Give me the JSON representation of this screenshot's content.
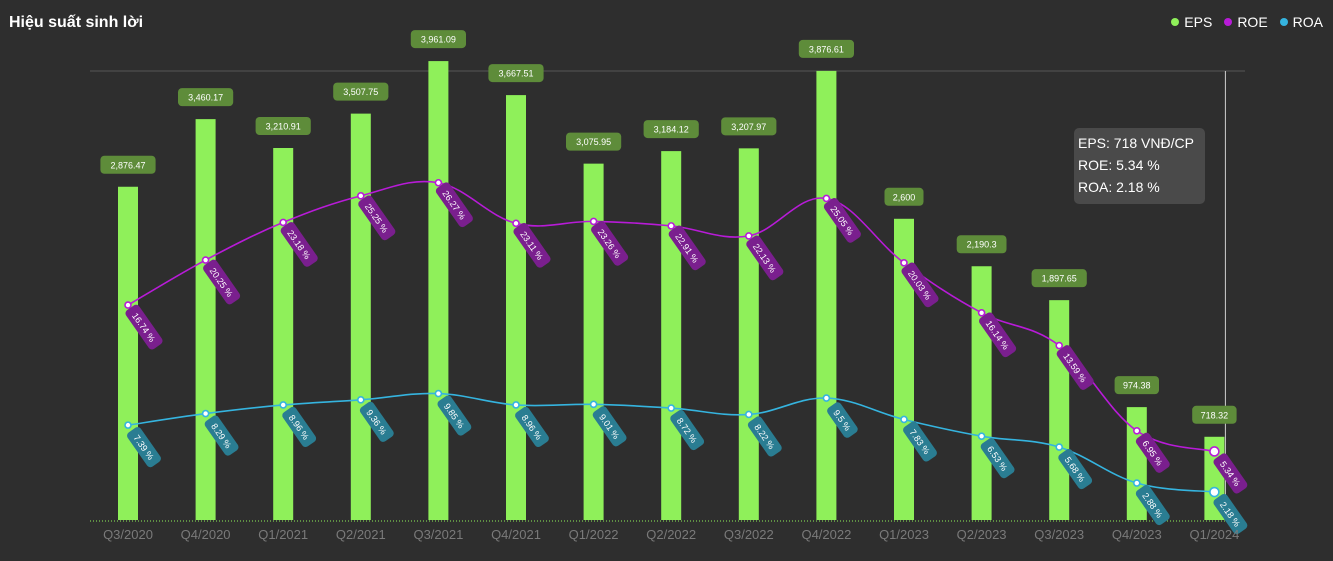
{
  "title": "Hiệu suất sinh lời",
  "colors": {
    "background": "#2e2e2e",
    "eps": "#8ff05a",
    "eps_label_bg": "#5e8c3a",
    "roe": "#b81bd8",
    "roe_label_bg": "#7a1f8e",
    "roa": "#35b4df",
    "roa_label_bg": "#2a7d92",
    "axis_text": "#7a7a7a"
  },
  "legend": [
    {
      "name": "EPS",
      "color": "#8ff05a"
    },
    {
      "name": "ROE",
      "color": "#b81bd8"
    },
    {
      "name": "ROA",
      "color": "#35b4df"
    }
  ],
  "tooltip": {
    "eps": "EPS: 718 VNĐ/CP",
    "roe": "ROE: 5.34 %",
    "roa": "ROA: 2.18 %"
  },
  "chart_data": {
    "type": "bar",
    "title": "Hiệu suất sinh lời",
    "categories": [
      "Q3/2020",
      "Q4/2020",
      "Q1/2021",
      "Q2/2021",
      "Q3/2021",
      "Q4/2021",
      "Q1/2022",
      "Q2/2022",
      "Q3/2022",
      "Q4/2022",
      "Q1/2023",
      "Q2/2023",
      "Q3/2023",
      "Q4/2023",
      "Q1/2024"
    ],
    "series": [
      {
        "name": "EPS",
        "type": "bar",
        "axis": "left",
        "values": [
          2876.47,
          3460.17,
          3210.91,
          3507.75,
          3961.09,
          3667.51,
          3075.95,
          3184.12,
          3207.97,
          3876.61,
          2600,
          2190.3,
          1897.65,
          974.38,
          718.32
        ],
        "labels": [
          "2,876.47",
          "3,460.17",
          "3,210.91",
          "3,507.75",
          "3,961.09",
          "3,667.51",
          "3,075.95",
          "3,184.12",
          "3,207.97",
          "3,876.61",
          "2,600",
          "2,190.3",
          "1,897.65",
          "974.38",
          "718.32"
        ]
      },
      {
        "name": "ROE",
        "type": "line",
        "axis": "right",
        "values": [
          16.74,
          20.25,
          23.18,
          25.25,
          26.27,
          23.11,
          23.26,
          22.91,
          22.13,
          25.05,
          20.03,
          16.14,
          13.59,
          6.95,
          5.34
        ],
        "labels": [
          "16.74 %",
          "20.25 %",
          "23.18 %",
          "25.25 %",
          "26.27 %",
          "23.11 %",
          "23.26 %",
          "22.91 %",
          "22.13 %",
          "25.05 %",
          "20.03 %",
          "16.14 %",
          "13.59 %",
          "6.95 %",
          "5.34 %"
        ]
      },
      {
        "name": "ROA",
        "type": "line",
        "axis": "right",
        "values": [
          7.39,
          8.29,
          8.96,
          9.36,
          9.85,
          8.96,
          9.01,
          8.72,
          8.22,
          9.5,
          7.83,
          6.53,
          5.68,
          2.88,
          2.18
        ],
        "labels": [
          "7.39 %",
          "8.29 %",
          "8.96 %",
          "9.36 %",
          "9.85 %",
          "8.96 %",
          "9.01 %",
          "8.72 %",
          "8.22 %",
          "9.5 %",
          "7.83 %",
          "6.53 %",
          "5.68 %",
          "2.88 %",
          "2.18 %"
        ]
      }
    ],
    "ylim_left": [
      0,
      4100
    ],
    "ylim_right": [
      0,
      37
    ],
    "highlighted_category": "Q1/2024",
    "grid": false,
    "legend_position": "top-right"
  }
}
